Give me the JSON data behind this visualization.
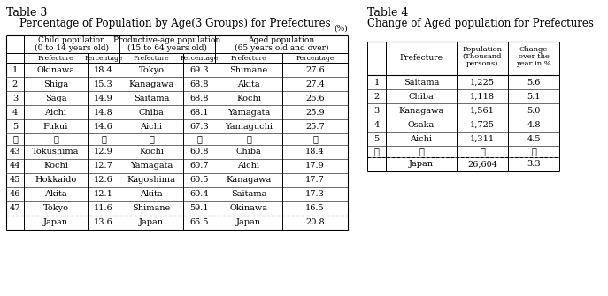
{
  "table3_title": "Table 3",
  "table3_subtitle": "Percentage of Population by Age(3 Groups) for Prefectures",
  "table3_unit": "(%)",
  "table3_rows": [
    [
      "1",
      "Okinawa",
      "18.4",
      "Tokyo",
      "69.3",
      "Shimane",
      "27.6"
    ],
    [
      "2",
      "Shiga",
      "15.3",
      "Kanagawa",
      "68.8",
      "Akita",
      "27.4"
    ],
    [
      "3",
      "Saga",
      "14.9",
      "Saitama",
      "68.8",
      "Kochi",
      "26.6"
    ],
    [
      "4",
      "Aichi",
      "14.8",
      "Chiba",
      "68.1",
      "Yamagata",
      "25.9"
    ],
    [
      "5",
      "Fukui",
      "14.6",
      "Aichi",
      "67.3",
      "Yamaguchi",
      "25.7"
    ],
    [
      "⋮",
      "⋮",
      "⋮",
      "⋮",
      "⋮",
      "⋮",
      "⋮"
    ],
    [
      "43",
      "Tokushima",
      "12.9",
      "Kochi",
      "60.8",
      "Chiba",
      "18.4"
    ],
    [
      "44",
      "Kochi",
      "12.7",
      "Yamagata",
      "60.7",
      "Aichi",
      "17.9"
    ],
    [
      "45",
      "Hokkaido",
      "12.6",
      "Kagoshima",
      "60.5",
      "Kanagawa",
      "17.7"
    ],
    [
      "46",
      "Akita",
      "12.1",
      "Akita",
      "60.4",
      "Saitama",
      "17.3"
    ],
    [
      "47",
      "Tokyo",
      "11.6",
      "Shimane",
      "59.1",
      "Okinawa",
      "16.5"
    ]
  ],
  "table3_footer": [
    "",
    "Japan",
    "13.6",
    "Japan",
    "65.5",
    "Japan",
    "20.8"
  ],
  "table4_title": "Table 4",
  "table4_subtitle": "Change of Aged population for Prefectures",
  "table4_rows": [
    [
      "1",
      "Saitama",
      "1,225",
      "5.6"
    ],
    [
      "2",
      "Chiba",
      "1,118",
      "5.1"
    ],
    [
      "3",
      "Kanagawa",
      "1,561",
      "5.0"
    ],
    [
      "4",
      "Osaka",
      "1,725",
      "4.8"
    ],
    [
      "5",
      "Aichi",
      "1,311",
      "4.5"
    ],
    [
      "⋮",
      "⋮",
      "⋮",
      "⋮"
    ]
  ],
  "table4_footer": [
    "",
    "Japan",
    "26,604",
    "3.3"
  ]
}
